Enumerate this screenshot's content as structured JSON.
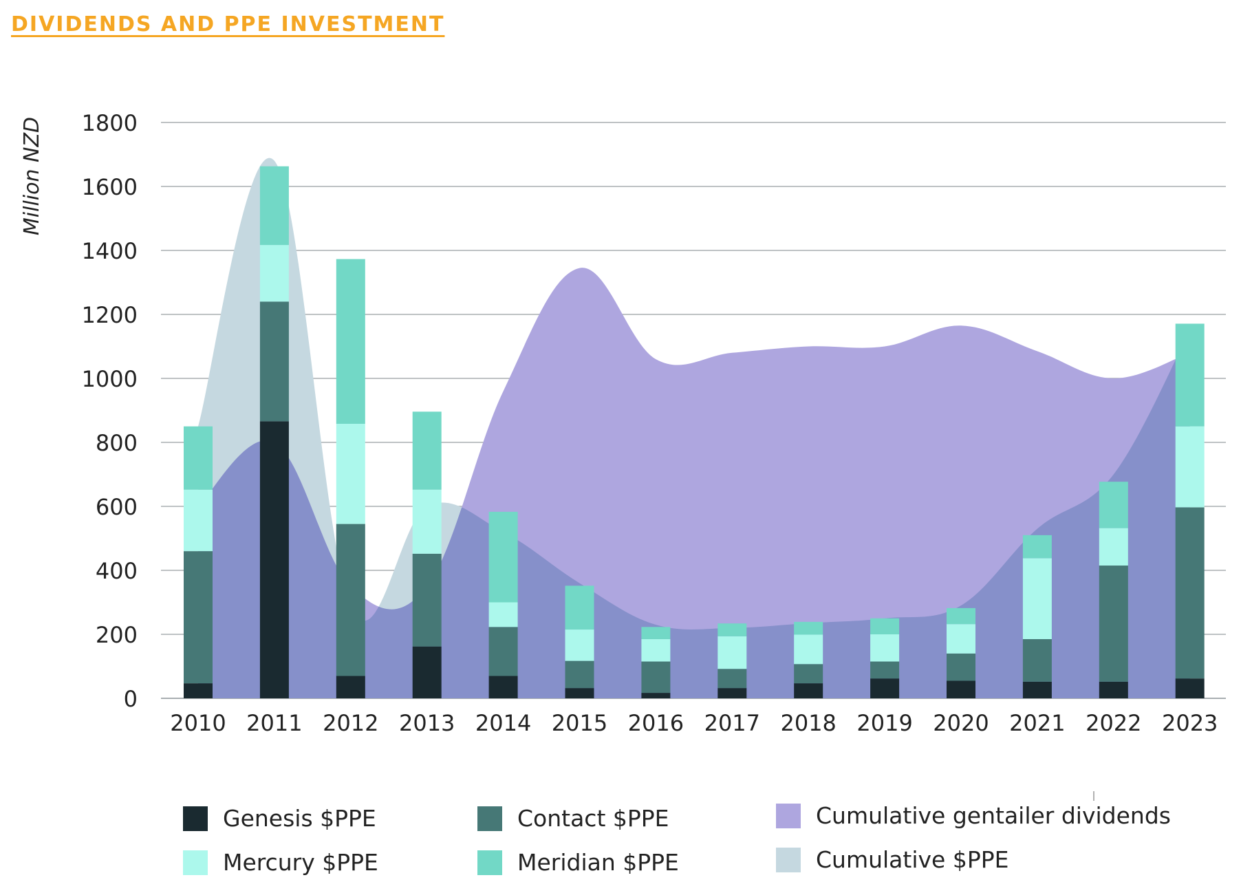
{
  "title": "DIVIDENDS AND PPE INVESTMENT",
  "colors": {
    "title": "#F5A623",
    "genesis": "#1A2A30",
    "contact": "#467876",
    "mercury": "#ACF8EC",
    "meridian": "#72D8C6",
    "dividends": "#AEA6DF",
    "cumulative_ppe": "#C5D8E0",
    "overlap": "#8690CA",
    "grid": "#A8ADB0"
  },
  "chart_data": {
    "type": "bar",
    "stacked": true,
    "ylabel": "Million NZD",
    "xlabel": "",
    "ylim": [
      0,
      1800
    ],
    "yticks": [
      0,
      200,
      400,
      600,
      800,
      1000,
      1200,
      1400,
      1600,
      1800
    ],
    "grid": true,
    "categories": [
      "2010",
      "2011",
      "2012",
      "2013",
      "2014",
      "2015",
      "2016",
      "2017",
      "2018",
      "2019",
      "2020",
      "2021",
      "2022",
      "2023"
    ],
    "series": [
      {
        "name": "Genesis $PPE",
        "values": [
          47,
          866,
          70,
          162,
          70,
          32,
          17,
          32,
          47,
          62,
          55,
          52,
          52,
          62
        ]
      },
      {
        "name": "Contact $PPE",
        "values": [
          413,
          374,
          475,
          290,
          153,
          85,
          98,
          60,
          60,
          53,
          85,
          133,
          363,
          535
        ]
      },
      {
        "name": "Mercury $PPE",
        "values": [
          192,
          177,
          313,
          200,
          77,
          98,
          70,
          102,
          92,
          85,
          92,
          253,
          117,
          253
        ]
      },
      {
        "name": "Meridian $PPE",
        "values": [
          198,
          246,
          515,
          244,
          283,
          137,
          38,
          40,
          40,
          50,
          50,
          72,
          145,
          321
        ]
      }
    ],
    "areas": [
      {
        "name": "Cumulative gentailer dividends",
        "values": [
          600,
          800,
          350,
          350,
          960,
          1345,
          1060,
          1080,
          1100,
          1100,
          1165,
          1085,
          1000,
          1080
        ]
      },
      {
        "name": "Cumulative $PPE",
        "values": [
          850,
          1680,
          290,
          600,
          520,
          360,
          230,
          220,
          235,
          250,
          290,
          530,
          700,
          1150
        ]
      }
    ],
    "legend": [
      "Genesis $PPE",
      "Contact $PPE",
      "Cumulative gentailer dividends",
      "Mercury $PPE",
      "Meridian $PPE",
      "Cumulative $PPE"
    ]
  },
  "legend": {
    "genesis": "Genesis $PPE",
    "contact": "Contact $PPE",
    "dividends": "Cumulative gentailer dividends",
    "mercury": "Mercury $PPE",
    "meridian": "Meridian $PPE",
    "cumulative_ppe": "Cumulative $PPE"
  }
}
